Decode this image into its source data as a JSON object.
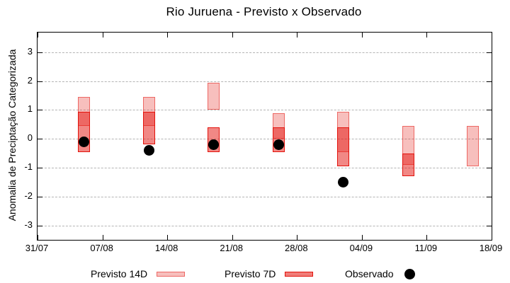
{
  "chart_data": {
    "type": "bar",
    "subtype": "range-bars-with-scatter-overlay",
    "title": "Rio Juruena - Previsto x Observado",
    "xlabel": "",
    "ylabel": "Anomalia de Preciptação Categorizada",
    "x_tick_labels": [
      "31/07",
      "07/08",
      "14/08",
      "21/08",
      "28/08",
      "04/09",
      "11/09",
      "18/09"
    ],
    "x_tick_days": [
      0,
      7,
      14,
      21,
      28,
      35,
      42,
      49
    ],
    "x_span": 49,
    "y_ticks": [
      3,
      2,
      1,
      0,
      -1,
      -2,
      -3
    ],
    "ylim": [
      -3.5,
      3.683
    ],
    "grid": "horizontal-dashed",
    "legend_position": "bottom",
    "colors": {
      "base_red": "#e3120b",
      "previsto_14d_fill": "rgba(227,18,11,0.27)",
      "previsto_14d_border": "rgba(227,18,11,0.5)",
      "previsto_7d_fill": "rgba(227,18,11,0.5)",
      "previsto_7d_border": "#e3120b",
      "observado": "#000000",
      "gridline": "#b4b4b4",
      "axis": "#000000"
    },
    "series": [
      {
        "name": "Previsto 14D",
        "kind": "range",
        "fill": "rgba(227,18,11,0.27)",
        "border": "rgba(227,18,11,0.5)",
        "ranges": [
          {
            "date": "05/08",
            "day": 5,
            "hi": 1.45,
            "lo": 0.45
          },
          {
            "date": "12/08",
            "day": 12,
            "hi": 1.45,
            "lo": 0.45
          },
          {
            "date": "19/08",
            "day": 19,
            "hi": 1.95,
            "lo": 1.0
          },
          {
            "date": "26/08",
            "day": 26,
            "hi": 0.9,
            "lo": 0.0
          },
          {
            "date": "02/09",
            "day": 33,
            "hi": 0.95,
            "lo": -0.45
          },
          {
            "date": "09/09",
            "day": 40,
            "hi": 0.45,
            "lo": -0.9
          },
          {
            "date": "16/09",
            "day": 47,
            "hi": 0.45,
            "lo": -0.95
          }
        ]
      },
      {
        "name": "Previsto 7D",
        "kind": "range",
        "fill": "rgba(227,18,11,0.5)",
        "border": "#e3120b",
        "ranges": [
          {
            "date": "05/08",
            "day": 5,
            "hi": 0.95,
            "lo": -0.45
          },
          {
            "date": "12/08",
            "day": 12,
            "hi": 0.95,
            "lo": -0.2
          },
          {
            "date": "19/08",
            "day": 19,
            "hi": 0.4,
            "lo": -0.45
          },
          {
            "date": "26/08",
            "day": 26,
            "hi": 0.4,
            "lo": -0.45
          },
          {
            "date": "02/09",
            "day": 33,
            "hi": 0.4,
            "lo": -0.95
          },
          {
            "date": "09/09",
            "day": 40,
            "hi": -0.5,
            "lo": -1.3
          }
        ]
      },
      {
        "name": "Observado",
        "kind": "scatter",
        "color": "#000000",
        "points": [
          {
            "date": "05/08",
            "day": 5,
            "v": -0.1
          },
          {
            "date": "12/08",
            "day": 12,
            "v": -0.4
          },
          {
            "date": "19/08",
            "day": 19,
            "v": -0.2
          },
          {
            "date": "26/08",
            "day": 26,
            "v": -0.2
          },
          {
            "date": "02/09",
            "day": 33,
            "v": -1.5
          }
        ]
      }
    ],
    "legend": {
      "items": [
        {
          "label": "Previsto 14D",
          "swatch": "light-pink-box"
        },
        {
          "label": "Previsto 7D",
          "swatch": "red-box"
        },
        {
          "label": "Observado",
          "swatch": "black-dot"
        }
      ]
    }
  }
}
